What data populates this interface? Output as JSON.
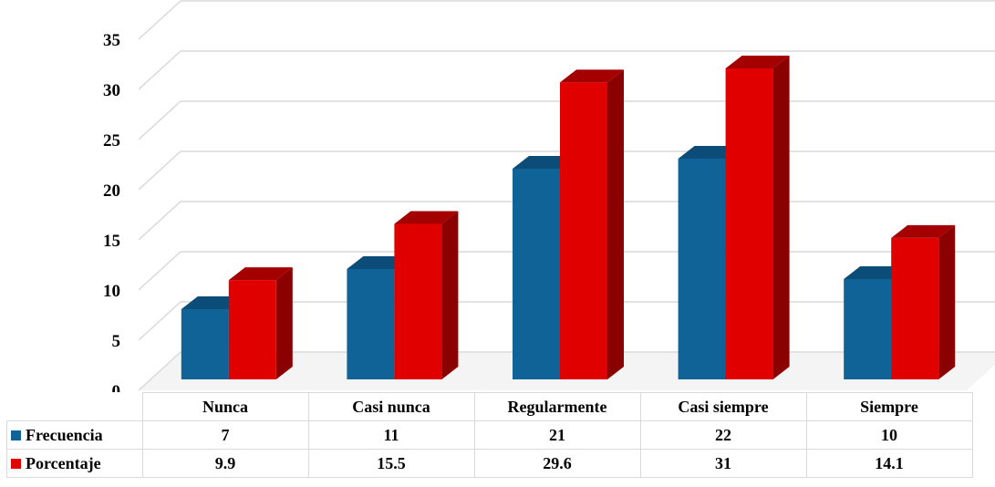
{
  "chart_data": {
    "type": "bar",
    "categories": [
      "Nunca",
      "Casi nunca",
      "Regularmente",
      "Casi siempre",
      "Siempre"
    ],
    "series": [
      {
        "name": "Frecuencia",
        "values": [
          7,
          11,
          21,
          22,
          10
        ],
        "color": "#0f6396",
        "top_color": "#0b4d78",
        "side_color": "#083a5c"
      },
      {
        "name": "Porcentaje",
        "values": [
          9.9,
          15.5,
          29.6,
          31,
          14.1
        ],
        "color": "#e00000",
        "top_color": "#a50000",
        "side_color": "#8b0000"
      }
    ],
    "table_values": [
      [
        "7",
        "11",
        "21",
        "22",
        "10"
      ],
      [
        "9.9",
        "15.5",
        "29.6",
        "31",
        "14.1"
      ]
    ],
    "yticks": [
      "0",
      "5",
      "10",
      "15",
      "20",
      "25",
      "30",
      "35"
    ],
    "ylim": [
      0,
      35
    ],
    "grid": true,
    "legend": "data table below chart",
    "three_d": true
  }
}
